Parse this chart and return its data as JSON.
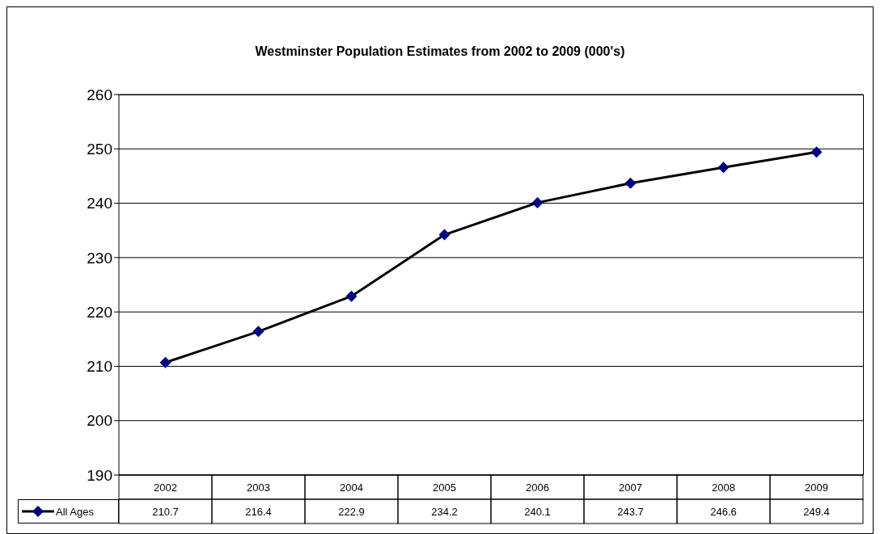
{
  "chart_data": {
    "type": "line",
    "title": "Westminster Population Estimates from 2002 to 2009 (000's)",
    "categories": [
      "2002",
      "2003",
      "2004",
      "2005",
      "2006",
      "2007",
      "2008",
      "2009"
    ],
    "series": [
      {
        "name": "All Ages",
        "color": "#000080",
        "values": [
          210.7,
          216.4,
          222.9,
          234.2,
          240.1,
          243.7,
          246.6,
          249.4
        ]
      }
    ],
    "ylim": [
      190,
      260
    ],
    "yticks": [
      190,
      200,
      210,
      220,
      230,
      240,
      250,
      260
    ],
    "grid": "y",
    "legend": "bottom",
    "marker": "diamond",
    "line_style": "solid",
    "data_labels": true
  }
}
